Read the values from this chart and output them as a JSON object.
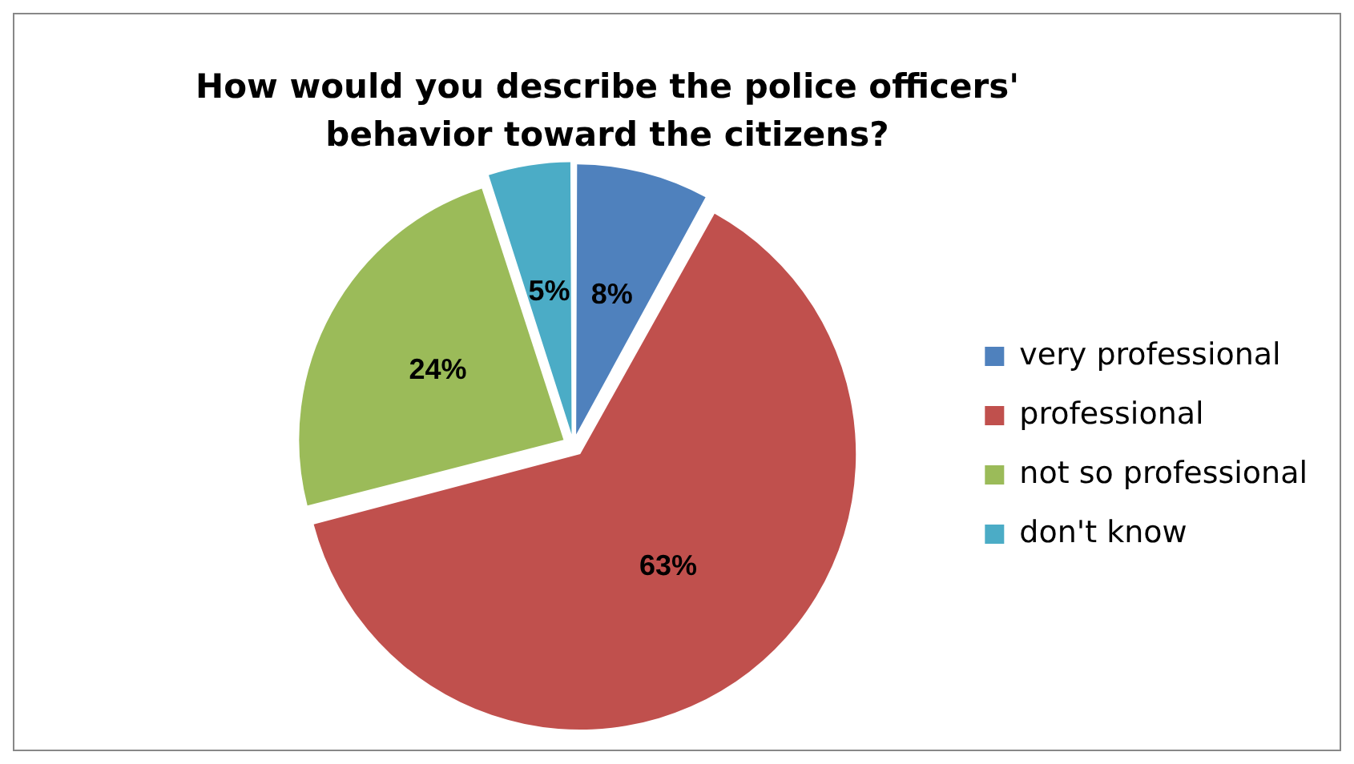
{
  "chart_data": {
    "type": "pie",
    "title": "How would you describe the police officers' behavior toward the citizens?",
    "categories": [
      "very professional",
      "professional",
      "not so professional",
      "don't know"
    ],
    "values": [
      8,
      63,
      24,
      5
    ],
    "colors": [
      "#4f81bd",
      "#c0504d",
      "#9bbb59",
      "#4bacc6"
    ],
    "value_labels": [
      "8%",
      "63%",
      "24%",
      "5%"
    ],
    "legend": "right"
  }
}
